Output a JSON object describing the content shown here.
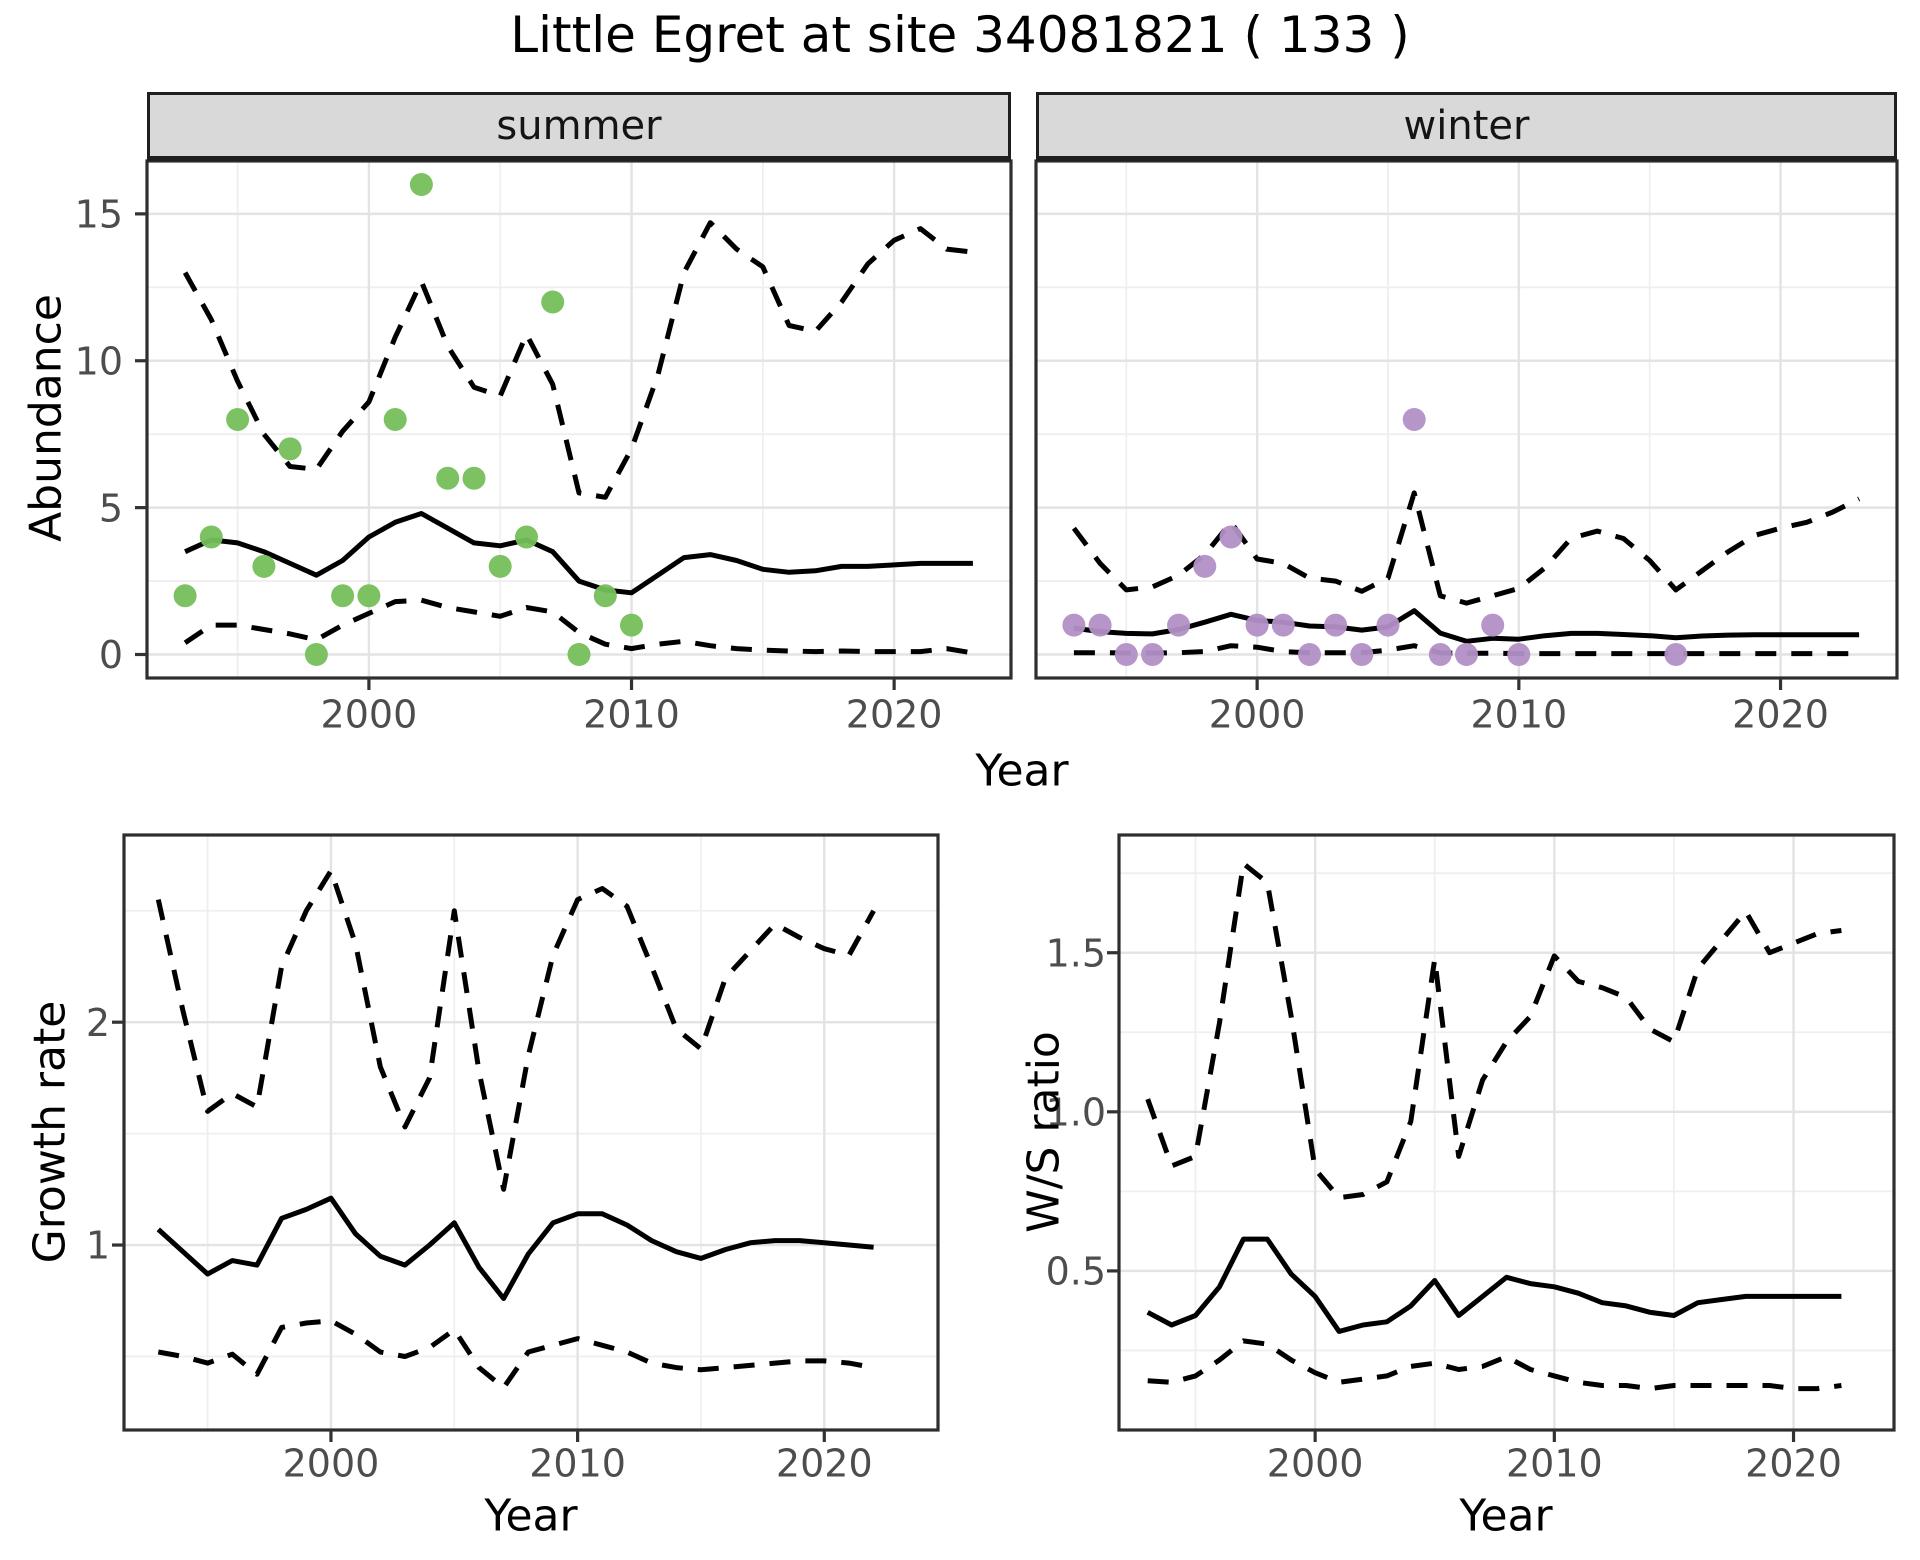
{
  "title": "Little Egret at site 34081821 ( 133 )",
  "colors": {
    "summer_points": "#75bf5a",
    "winter_points": "#b28fc6",
    "line": "#000000",
    "gridline_major": "#e3e3e3",
    "gridline_minor": "#efefef",
    "panel_border": "#2e2e2e",
    "strip_fill": "#d9d9d9",
    "tick_label": "#4d4d4d"
  },
  "chart_data": [
    {
      "id": "abundance_summer",
      "type": "line",
      "facet_label": "summer",
      "xlabel": "Year",
      "ylabel": "Abundance",
      "xlim": [
        1991.55,
        2024.45
      ],
      "ylim": [
        -0.8,
        16.8
      ],
      "xticks": [
        2000,
        2010,
        2020
      ],
      "xtick_labels": [
        "2000",
        "2010",
        "2020"
      ],
      "xminor": [
        1995,
        2005,
        2015
      ],
      "yticks": [
        0,
        5,
        10,
        15
      ],
      "ytick_labels": [
        "0",
        "5",
        "10",
        "15"
      ],
      "yminor": [
        2.5,
        7.5,
        12.5
      ],
      "grid": true,
      "legend": null,
      "x": [
        1993,
        1994,
        1995,
        1996,
        1997,
        1998,
        1999,
        2000,
        2001,
        2002,
        2003,
        2004,
        2005,
        2006,
        2007,
        2008,
        2009,
        2010,
        2011,
        2012,
        2013,
        2014,
        2015,
        2016,
        2017,
        2018,
        2019,
        2020,
        2021,
        2022,
        2023
      ],
      "series": [
        {
          "name": "median",
          "style": "solid",
          "values": [
            3.5,
            3.9,
            3.8,
            3.5,
            3.1,
            2.7,
            3.2,
            4.0,
            4.5,
            4.8,
            4.3,
            3.8,
            3.7,
            3.9,
            3.5,
            2.5,
            2.2,
            2.1,
            2.7,
            3.3,
            3.4,
            3.2,
            2.9,
            2.8,
            2.85,
            3.0,
            3.0,
            3.05,
            3.1,
            3.1,
            3.1
          ]
        },
        {
          "name": "upper_95ci",
          "style": "dashed",
          "values": [
            13.0,
            11.4,
            9.3,
            7.5,
            6.4,
            6.3,
            7.6,
            8.6,
            10.8,
            12.7,
            10.5,
            9.1,
            8.8,
            10.9,
            9.2,
            5.5,
            5.35,
            7.0,
            9.5,
            13.0,
            14.7,
            13.8,
            13.2,
            11.2,
            11.0,
            12.0,
            13.3,
            14.1,
            14.5,
            13.8,
            13.7
          ]
        },
        {
          "name": "lower_95ci",
          "style": "dashed",
          "values": [
            0.4,
            1.0,
            1.0,
            0.85,
            0.7,
            0.5,
            1.0,
            1.4,
            1.8,
            1.85,
            1.6,
            1.45,
            1.3,
            1.6,
            1.45,
            0.75,
            0.35,
            0.2,
            0.35,
            0.45,
            0.3,
            0.2,
            0.15,
            0.12,
            0.1,
            0.12,
            0.1,
            0.1,
            0.1,
            0.2,
            0.05
          ]
        }
      ],
      "points": {
        "name": "observed_counts",
        "color_key": "summer_points",
        "x": [
          1993,
          1994,
          1995,
          1996,
          1997,
          1998,
          1999,
          2000,
          2001,
          2002,
          2003,
          2004,
          2005,
          2006,
          2007,
          2008,
          2009,
          2010
        ],
        "y": [
          2,
          4,
          8,
          3,
          7,
          0,
          2,
          2,
          8,
          16,
          6,
          6,
          3,
          4,
          12,
          0,
          2,
          1
        ]
      }
    },
    {
      "id": "abundance_winter",
      "type": "line",
      "facet_label": "winter",
      "xlabel": "Year",
      "ylabel": "Abundance",
      "xlim": [
        1991.55,
        2024.45
      ],
      "ylim": [
        -0.8,
        16.8
      ],
      "xticks": [
        2000,
        2010,
        2020
      ],
      "xtick_labels": [
        "2000",
        "2010",
        "2020"
      ],
      "xminor": [
        1995,
        2005,
        2015
      ],
      "yticks": [
        0,
        5,
        10,
        15
      ],
      "ytick_labels": [],
      "yminor": [
        2.5,
        7.5,
        12.5
      ],
      "grid": true,
      "legend": null,
      "x": [
        1993,
        1994,
        1995,
        1996,
        1997,
        1998,
        1999,
        2000,
        2001,
        2002,
        2003,
        2004,
        2005,
        2006,
        2007,
        2008,
        2009,
        2010,
        2011,
        2012,
        2013,
        2014,
        2015,
        2016,
        2017,
        2018,
        2019,
        2020,
        2021,
        2022,
        2023
      ],
      "series": [
        {
          "name": "median",
          "style": "solid",
          "values": [
            0.9,
            0.78,
            0.72,
            0.7,
            0.85,
            1.1,
            1.37,
            1.16,
            1.1,
            0.97,
            0.94,
            0.83,
            0.94,
            1.49,
            0.73,
            0.45,
            0.55,
            0.52,
            0.64,
            0.72,
            0.72,
            0.68,
            0.64,
            0.57,
            0.63,
            0.66,
            0.67,
            0.67,
            0.67,
            0.67,
            0.67
          ]
        },
        {
          "name": "upper_95ci",
          "style": "dashed",
          "values": [
            4.3,
            3.1,
            2.2,
            2.3,
            2.7,
            3.4,
            4.5,
            3.25,
            3.1,
            2.6,
            2.5,
            2.15,
            2.6,
            5.5,
            2.0,
            1.75,
            2.0,
            2.25,
            2.95,
            3.96,
            4.2,
            3.95,
            3.2,
            2.2,
            2.85,
            3.5,
            4.05,
            4.3,
            4.5,
            4.85,
            5.3
          ]
        },
        {
          "name": "lower_95ci",
          "style": "dashed",
          "values": [
            0.06,
            0.06,
            0.05,
            0.05,
            0.06,
            0.1,
            0.3,
            0.25,
            0.1,
            0.06,
            0.06,
            0.06,
            0.15,
            0.3,
            0.05,
            0.04,
            0.04,
            0.03,
            0.03,
            0.03,
            0.03,
            0.03,
            0.03,
            0.03,
            0.03,
            0.03,
            0.03,
            0.03,
            0.03,
            0.03,
            0.03
          ]
        }
      ],
      "points": {
        "name": "observed_counts",
        "color_key": "winter_points",
        "x": [
          1993,
          1994,
          1995,
          1996,
          1997,
          1998,
          1999,
          2000,
          2001,
          2002,
          2003,
          2004,
          2005,
          2006,
          2007,
          2008,
          2009,
          2010,
          2016
        ],
        "y": [
          1,
          1,
          0,
          0,
          1,
          3,
          4,
          1,
          1,
          0,
          1,
          0,
          1,
          8,
          0,
          0,
          1,
          0,
          0
        ]
      }
    },
    {
      "id": "growth_rate",
      "type": "line",
      "facet_label": null,
      "xlabel": "Year",
      "ylabel": "Growth rate",
      "xlim": [
        1991.61,
        2024.61
      ],
      "ylim": [
        0.17,
        2.84
      ],
      "xticks": [
        2000,
        2010,
        2020
      ],
      "xtick_labels": [
        "2000",
        "2010",
        "2020"
      ],
      "xminor": [
        1995,
        2005,
        2015
      ],
      "yticks": [
        1,
        2
      ],
      "ytick_labels": [
        "1",
        "2"
      ],
      "yminor": [
        0.5,
        1.5,
        2.5
      ],
      "grid": true,
      "legend": null,
      "x": [
        1993,
        1994,
        1995,
        1996,
        1997,
        1998,
        1999,
        2000,
        2001,
        2002,
        2003,
        2004,
        2005,
        2006,
        2007,
        2008,
        2009,
        2010,
        2011,
        2012,
        2013,
        2014,
        2015,
        2016,
        2017,
        2018,
        2019,
        2020,
        2021,
        2022
      ],
      "series": [
        {
          "name": "median",
          "style": "solid",
          "values": [
            1.07,
            0.97,
            0.87,
            0.93,
            0.91,
            1.12,
            1.16,
            1.21,
            1.05,
            0.95,
            0.91,
            1.0,
            1.1,
            0.9,
            0.76,
            0.96,
            1.1,
            1.14,
            1.14,
            1.09,
            1.02,
            0.97,
            0.94,
            0.98,
            1.01,
            1.02,
            1.02,
            1.01,
            1.0,
            0.99
          ]
        },
        {
          "name": "upper_95ci",
          "style": "dashed",
          "values": [
            2.55,
            2.05,
            1.6,
            1.68,
            1.62,
            2.25,
            2.5,
            2.68,
            2.35,
            1.8,
            1.53,
            1.75,
            2.5,
            1.78,
            1.25,
            1.85,
            2.3,
            2.55,
            2.6,
            2.52,
            2.25,
            1.97,
            1.88,
            2.2,
            2.32,
            2.44,
            2.38,
            2.33,
            2.3,
            2.5
          ]
        },
        {
          "name": "lower_95ci",
          "style": "dashed",
          "values": [
            0.52,
            0.5,
            0.47,
            0.51,
            0.42,
            0.63,
            0.65,
            0.66,
            0.6,
            0.52,
            0.5,
            0.54,
            0.62,
            0.45,
            0.36,
            0.52,
            0.55,
            0.58,
            0.55,
            0.52,
            0.47,
            0.45,
            0.44,
            0.45,
            0.46,
            0.47,
            0.48,
            0.48,
            0.47,
            0.45
          ]
        }
      ],
      "points": null
    },
    {
      "id": "ws_ratio",
      "type": "line",
      "facet_label": null,
      "xlabel": "Year",
      "ylabel": "W/S ratio",
      "xlim": [
        1991.8,
        2024.2
      ],
      "ylim": [
        0.0,
        1.87
      ],
      "xticks": [
        2000,
        2010,
        2020
      ],
      "xtick_labels": [
        "2000",
        "2010",
        "2020"
      ],
      "xminor": [
        1995,
        2005,
        2015
      ],
      "yticks": [
        0.5,
        1.0,
        1.5
      ],
      "ytick_labels": [
        "0.5",
        "1.0",
        "1.5"
      ],
      "yminor": [
        0.25,
        0.75,
        1.25,
        1.75
      ],
      "grid": true,
      "legend": null,
      "x": [
        1993,
        1994,
        1995,
        1996,
        1997,
        1998,
        1999,
        2000,
        2001,
        2002,
        2003,
        2004,
        2005,
        2006,
        2007,
        2008,
        2009,
        2010,
        2011,
        2012,
        2013,
        2014,
        2015,
        2016,
        2017,
        2018,
        2019,
        2020,
        2021,
        2022
      ],
      "series": [
        {
          "name": "median",
          "style": "solid",
          "values": [
            0.37,
            0.33,
            0.36,
            0.45,
            0.6,
            0.6,
            0.49,
            0.42,
            0.31,
            0.33,
            0.34,
            0.39,
            0.47,
            0.36,
            0.42,
            0.48,
            0.46,
            0.45,
            0.43,
            0.4,
            0.39,
            0.37,
            0.36,
            0.4,
            0.41,
            0.42,
            0.42,
            0.42,
            0.42,
            0.42
          ]
        },
        {
          "name": "upper_95ci",
          "style": "dashed",
          "values": [
            1.04,
            0.83,
            0.86,
            1.28,
            1.78,
            1.72,
            1.3,
            0.82,
            0.73,
            0.74,
            0.78,
            0.97,
            1.48,
            0.86,
            1.1,
            1.22,
            1.3,
            1.49,
            1.41,
            1.39,
            1.36,
            1.26,
            1.22,
            1.45,
            1.54,
            1.63,
            1.5,
            1.53,
            1.56,
            1.57
          ]
        },
        {
          "name": "lower_95ci",
          "style": "dashed",
          "values": [
            0.155,
            0.15,
            0.17,
            0.22,
            0.28,
            0.27,
            0.22,
            0.18,
            0.15,
            0.16,
            0.17,
            0.2,
            0.21,
            0.19,
            0.2,
            0.23,
            0.19,
            0.17,
            0.15,
            0.14,
            0.14,
            0.13,
            0.14,
            0.14,
            0.14,
            0.14,
            0.14,
            0.13,
            0.13,
            0.14
          ]
        }
      ],
      "points": null
    }
  ]
}
